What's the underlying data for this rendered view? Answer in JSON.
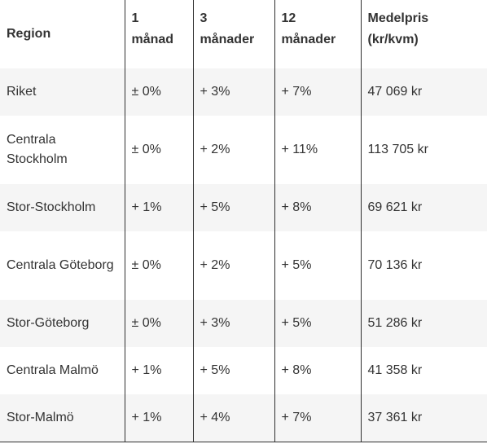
{
  "table": {
    "headers": {
      "region": "Region",
      "m1_a": "1",
      "m1_b": "månad",
      "m3_a": "3",
      "m3_b": "månader",
      "m12_a": "12",
      "m12_b": "månader",
      "price_a": "Medelpris",
      "price_b": "(kr/kvm)"
    },
    "rows": [
      {
        "region": "Riket",
        "m1": "± 0%",
        "m3": "+ 3%",
        "m12": "+ 7%",
        "price": "47 069 kr"
      },
      {
        "region": "Centrala Stockholm",
        "m1": "± 0%",
        "m3": "+ 2%",
        "m12": "+ 11%",
        "price": "113 705 kr"
      },
      {
        "region": "Stor-Stockholm",
        "m1": "+ 1%",
        "m3": "+ 5%",
        "m12": "+ 8%",
        "price": "69 621 kr"
      },
      {
        "region": "Centrala Göteborg",
        "m1": "± 0%",
        "m3": "+ 2%",
        "m12": "+ 5%",
        "price": "70 136 kr"
      },
      {
        "region": "Stor-Göteborg",
        "m1": "± 0%",
        "m3": "+ 3%",
        "m12": "+ 5%",
        "price": "51 286 kr"
      },
      {
        "region": "Centrala Malmö",
        "m1": "+ 1%",
        "m3": "+ 5%",
        "m12": "+ 8%",
        "price": "41 358 kr"
      },
      {
        "region": "Stor-Malmö",
        "m1": "+ 1%",
        "m3": "+ 4%",
        "m12": "+ 7%",
        "price": "37 361 kr"
      }
    ]
  }
}
